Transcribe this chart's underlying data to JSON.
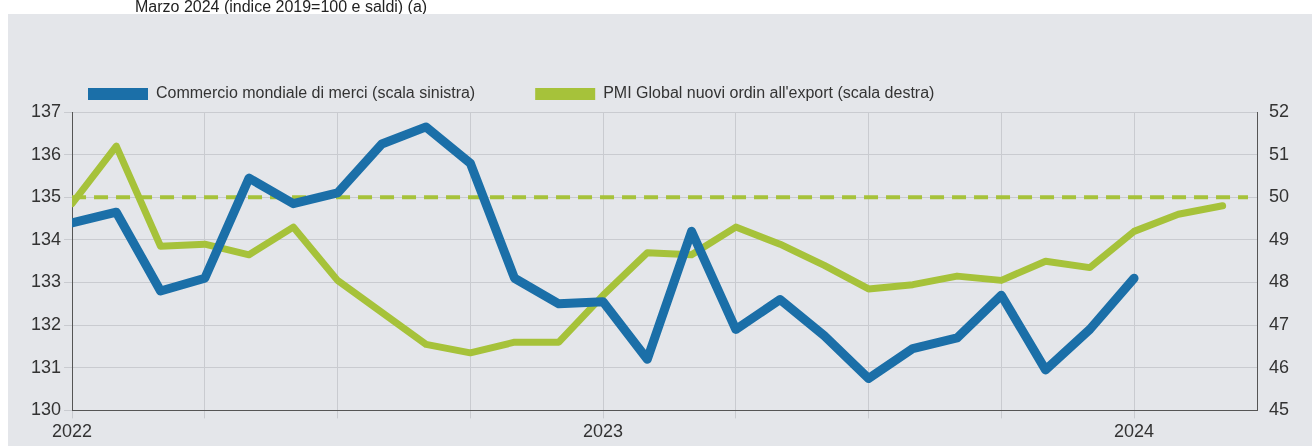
{
  "chart_data": {
    "type": "line",
    "title": "Marzo 2024 (indice 2019=100 e saldi) (a)",
    "x": [
      "2022-01",
      "2022-02",
      "2022-03",
      "2022-04",
      "2022-05",
      "2022-06",
      "2022-07",
      "2022-08",
      "2022-09",
      "2022-10",
      "2022-11",
      "2022-12",
      "2023-01",
      "2023-02",
      "2023-03",
      "2023-04",
      "2023-05",
      "2023-06",
      "2023-07",
      "2023-08",
      "2023-09",
      "2023-10",
      "2023-11",
      "2023-12",
      "2024-01",
      "2024-02",
      "2024-03"
    ],
    "series": [
      {
        "name": "Commercio mondiale di merci (scala sinistra)",
        "color": "#1b6fa8",
        "values": [
          134.4,
          134.65,
          132.8,
          133.1,
          135.45,
          134.85,
          135.1,
          136.25,
          136.65,
          135.8,
          133.1,
          132.5,
          132.55,
          131.2,
          134.2,
          131.9,
          132.6,
          131.75,
          130.75,
          131.45,
          131.7,
          132.7,
          130.95,
          131.9,
          133.1,
          null,
          null
        ]
      },
      {
        "name": "PMI Global nuovi ordin all'export (scala destra)",
        "color": "#a6c23a",
        "axis": "y2",
        "values": [
          49.85,
          51.2,
          48.85,
          48.9,
          48.65,
          49.3,
          48.05,
          47.3,
          46.55,
          46.35,
          46.6,
          46.6,
          47.7,
          48.7,
          48.65,
          49.3,
          48.9,
          48.4,
          47.85,
          47.95,
          48.15,
          48.05,
          48.5,
          48.35,
          49.2,
          49.6,
          49.8
        ]
      }
    ],
    "xlim": [
      "2022-01",
      "2024-03-25"
    ],
    "xticks": [
      {
        "value": "2022-01",
        "label": "2022"
      },
      {
        "value": "2022-04",
        "label": null
      },
      {
        "value": "2022-07",
        "label": null
      },
      {
        "value": "2022-10",
        "label": null
      },
      {
        "value": "2023-01",
        "label": "2023"
      },
      {
        "value": "2023-04",
        "label": null
      },
      {
        "value": "2023-07",
        "label": null
      },
      {
        "value": "2023-10",
        "label": null
      },
      {
        "value": "2024-01",
        "label": "2024"
      }
    ],
    "ylim": [
      130,
      137
    ],
    "yticks": [
      130,
      131,
      132,
      133,
      134,
      135,
      136,
      137
    ],
    "y2lim": [
      45,
      52
    ],
    "y2ticks": [
      45,
      46,
      47,
      48,
      49,
      50,
      51,
      52
    ],
    "ref_lines": [
      {
        "axis": "y2",
        "value": 50,
        "color": "#a6c23a",
        "line_style": "dashed"
      }
    ],
    "grid": true,
    "legend": "top",
    "line_style": "solid",
    "marker": "none"
  }
}
